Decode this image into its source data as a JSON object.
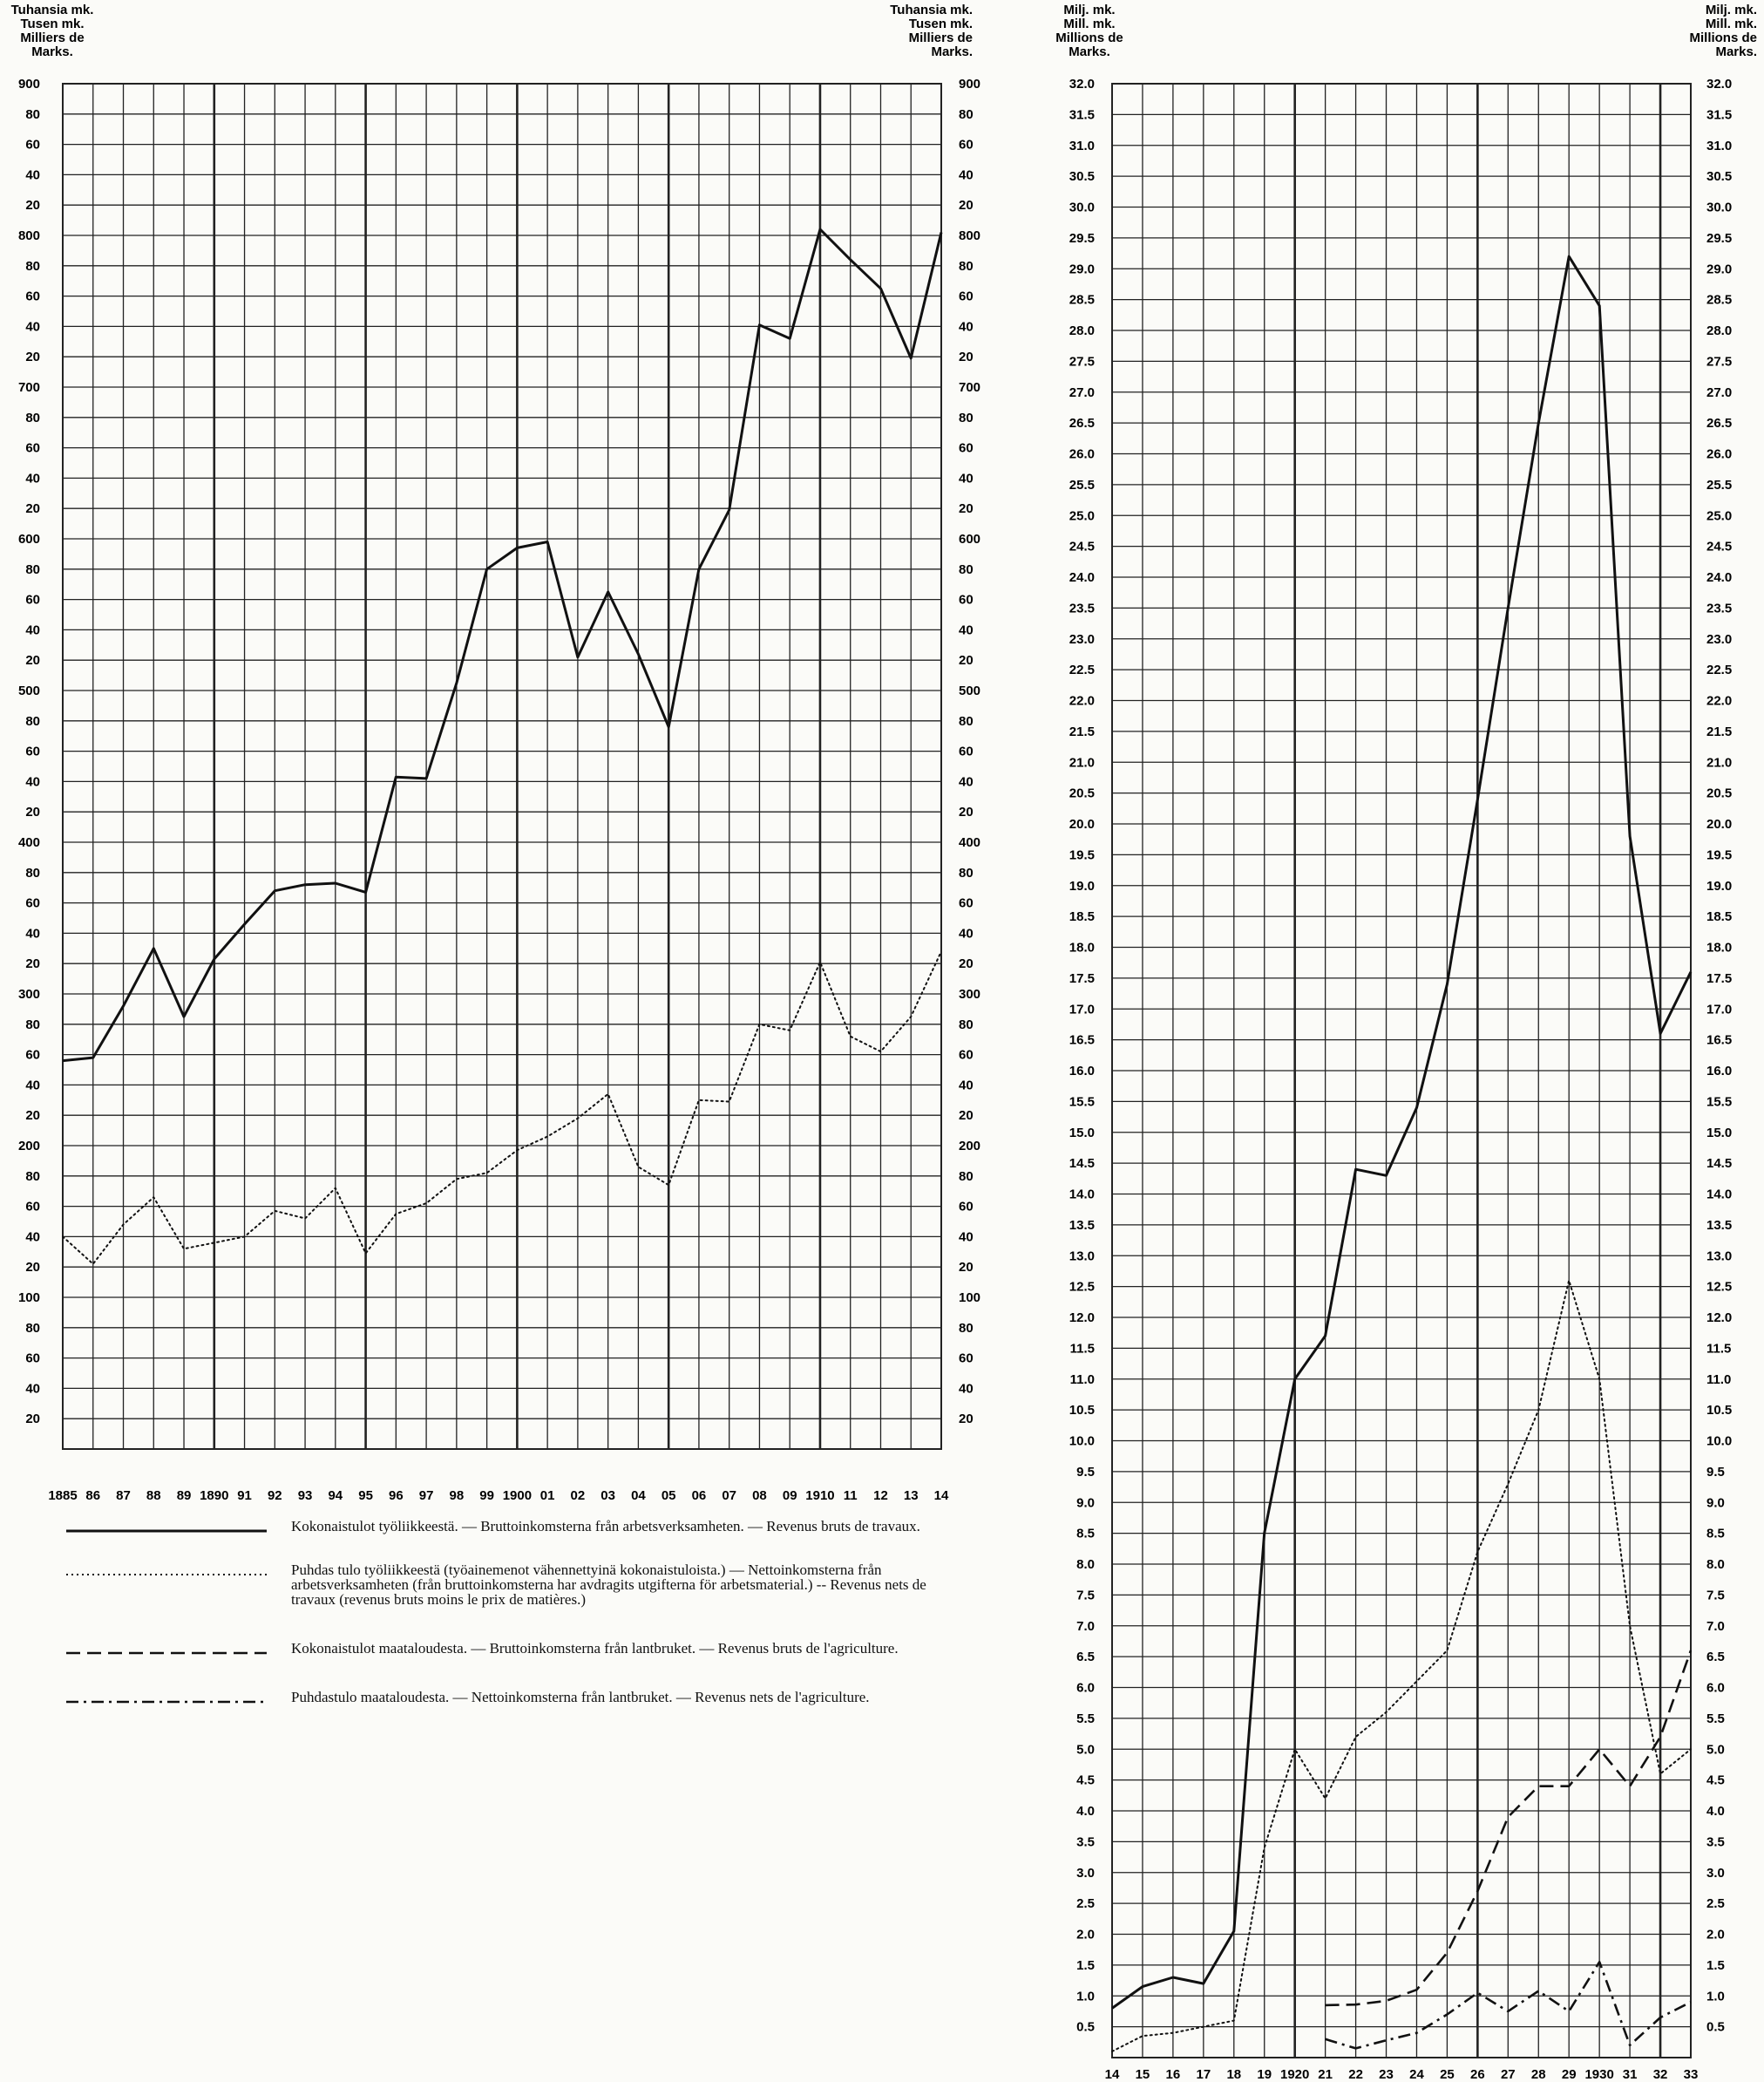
{
  "chart_data": [
    {
      "type": "line",
      "axis_labels": [
        "Tuhansia mk.",
        "Tusen mk.",
        "Milliers de",
        "Marks."
      ],
      "y_ticks": [
        {
          "v": 900,
          "t": "900"
        },
        {
          "v": 880,
          "t": "80"
        },
        {
          "v": 860,
          "t": "60"
        },
        {
          "v": 840,
          "t": "40"
        },
        {
          "v": 820,
          "t": "20"
        },
        {
          "v": 800,
          "t": "800"
        },
        {
          "v": 780,
          "t": "80"
        },
        {
          "v": 760,
          "t": "60"
        },
        {
          "v": 740,
          "t": "40"
        },
        {
          "v": 720,
          "t": "20"
        },
        {
          "v": 700,
          "t": "700"
        },
        {
          "v": 680,
          "t": "80"
        },
        {
          "v": 660,
          "t": "60"
        },
        {
          "v": 640,
          "t": "40"
        },
        {
          "v": 620,
          "t": "20"
        },
        {
          "v": 600,
          "t": "600"
        },
        {
          "v": 580,
          "t": "80"
        },
        {
          "v": 560,
          "t": "60"
        },
        {
          "v": 540,
          "t": "40"
        },
        {
          "v": 520,
          "t": "20"
        },
        {
          "v": 500,
          "t": "500"
        },
        {
          "v": 480,
          "t": "80"
        },
        {
          "v": 460,
          "t": "60"
        },
        {
          "v": 440,
          "t": "40"
        },
        {
          "v": 420,
          "t": "20"
        },
        {
          "v": 400,
          "t": "400"
        },
        {
          "v": 380,
          "t": "80"
        },
        {
          "v": 360,
          "t": "60"
        },
        {
          "v": 340,
          "t": "40"
        },
        {
          "v": 320,
          "t": "20"
        },
        {
          "v": 300,
          "t": "300"
        },
        {
          "v": 280,
          "t": "80"
        },
        {
          "v": 260,
          "t": "60"
        },
        {
          "v": 240,
          "t": "40"
        },
        {
          "v": 220,
          "t": "20"
        },
        {
          "v": 200,
          "t": "200"
        },
        {
          "v": 180,
          "t": "80"
        },
        {
          "v": 160,
          "t": "60"
        },
        {
          "v": 140,
          "t": "40"
        },
        {
          "v": 120,
          "t": "20"
        },
        {
          "v": 100,
          "t": "100"
        },
        {
          "v": 80,
          "t": "80"
        },
        {
          "v": 60,
          "t": "60"
        },
        {
          "v": 40,
          "t": "40"
        },
        {
          "v": 20,
          "t": "20"
        }
      ],
      "ylim": [
        0,
        900
      ],
      "x_tick_labels": [
        "1885",
        "86",
        "87",
        "88",
        "89",
        "1890",
        "91",
        "92",
        "93",
        "94",
        "95",
        "96",
        "97",
        "98",
        "99",
        "1900",
        "01",
        "02",
        "03",
        "04",
        "05",
        "06",
        "07",
        "08",
        "09",
        "1910",
        "11",
        "12",
        "13",
        "14"
      ],
      "x": [
        1885,
        1886,
        1887,
        1888,
        1889,
        1890,
        1891,
        1892,
        1893,
        1894,
        1895,
        1896,
        1897,
        1898,
        1899,
        1900,
        1901,
        1902,
        1903,
        1904,
        1905,
        1906,
        1907,
        1908,
        1909,
        1910,
        1911,
        1912,
        1913,
        1914
      ],
      "xlim": [
        1885,
        1914
      ],
      "series": [
        {
          "style": "solid",
          "values": [
            256,
            258,
            292,
            330,
            285,
            323,
            346,
            368,
            372,
            373,
            367,
            443,
            442,
            505,
            580,
            594,
            598,
            522,
            565,
            524,
            476,
            580,
            619,
            741,
            732,
            804,
            784,
            765,
            719,
            802
          ]
        },
        {
          "style": "dotted",
          "values": [
            140,
            122,
            148,
            166,
            132,
            136,
            140,
            157,
            152,
            172,
            129,
            155,
            162,
            178,
            182,
            197,
            206,
            218,
            234,
            186,
            174,
            230,
            229,
            280,
            276,
            321,
            272,
            262,
            285,
            328
          ]
        }
      ],
      "legend": [
        {
          "style": "solid",
          "text": "Kokonaistulot työliikkeestä. — Bruttoinkomsterna från arbetsverksamheten. — Revenus bruts de travaux."
        },
        {
          "style": "dotted",
          "text": "Puhdas tulo työliikkeestä (työainemenot vähennettyinä kokonaistuloista.) — Nettoinkomsterna från arbetsverksamheten (från bruttoinkomsterna har avdragits utgifterna för arbetsmaterial.) -- Revenus nets de travaux (revenus bruts moins le prix de matières.)"
        },
        {
          "style": "dashed",
          "text": "Kokonaistulot maataloudesta. — Bruttoinkomsterna från lantbruket. — Revenus bruts de l'agriculture."
        },
        {
          "style": "dashdot",
          "text": "Puhdastulo maataloudesta. — Nettoinkomsterna från lantbruket. — Revenus nets de l'agriculture."
        }
      ]
    },
    {
      "type": "line",
      "axis_labels": [
        "Milj. mk.",
        "Mill. mk.",
        "Millions de",
        "Marks."
      ],
      "y_ticks": [
        {
          "v": 32.0,
          "t": "32.0"
        },
        {
          "v": 31.5,
          "t": "31.5"
        },
        {
          "v": 31.0,
          "t": "31.0"
        },
        {
          "v": 30.5,
          "t": "30.5"
        },
        {
          "v": 30.0,
          "t": "30.0"
        },
        {
          "v": 29.5,
          "t": "29.5"
        },
        {
          "v": 29.0,
          "t": "29.0"
        },
        {
          "v": 28.5,
          "t": "28.5"
        },
        {
          "v": 28.0,
          "t": "28.0"
        },
        {
          "v": 27.5,
          "t": "27.5"
        },
        {
          "v": 27.0,
          "t": "27.0"
        },
        {
          "v": 26.5,
          "t": "26.5"
        },
        {
          "v": 26.0,
          "t": "26.0"
        },
        {
          "v": 25.5,
          "t": "25.5"
        },
        {
          "v": 25.0,
          "t": "25.0"
        },
        {
          "v": 24.5,
          "t": "24.5"
        },
        {
          "v": 24.0,
          "t": "24.0"
        },
        {
          "v": 23.5,
          "t": "23.5"
        },
        {
          "v": 23.0,
          "t": "23.0"
        },
        {
          "v": 22.5,
          "t": "22.5"
        },
        {
          "v": 22.0,
          "t": "22.0"
        },
        {
          "v": 21.5,
          "t": "21.5"
        },
        {
          "v": 21.0,
          "t": "21.0"
        },
        {
          "v": 20.5,
          "t": "20.5"
        },
        {
          "v": 20.0,
          "t": "20.0"
        },
        {
          "v": 19.5,
          "t": "19.5"
        },
        {
          "v": 19.0,
          "t": "19.0"
        },
        {
          "v": 18.5,
          "t": "18.5"
        },
        {
          "v": 18.0,
          "t": "18.0"
        },
        {
          "v": 17.5,
          "t": "17.5"
        },
        {
          "v": 17.0,
          "t": "17.0"
        },
        {
          "v": 16.5,
          "t": "16.5"
        },
        {
          "v": 16.0,
          "t": "16.0"
        },
        {
          "v": 15.5,
          "t": "15.5"
        },
        {
          "v": 15.0,
          "t": "15.0"
        },
        {
          "v": 14.5,
          "t": "14.5"
        },
        {
          "v": 14.0,
          "t": "14.0"
        },
        {
          "v": 13.5,
          "t": "13.5"
        },
        {
          "v": 13.0,
          "t": "13.0"
        },
        {
          "v": 12.5,
          "t": "12.5"
        },
        {
          "v": 12.0,
          "t": "12.0"
        },
        {
          "v": 11.5,
          "t": "11.5"
        },
        {
          "v": 11.0,
          "t": "11.0"
        },
        {
          "v": 10.5,
          "t": "10.5"
        },
        {
          "v": 10.0,
          "t": "10.0"
        },
        {
          "v": 9.5,
          "t": "9.5"
        },
        {
          "v": 9.0,
          "t": "9.0"
        },
        {
          "v": 8.5,
          "t": "8.5"
        },
        {
          "v": 8.0,
          "t": "8.0"
        },
        {
          "v": 7.5,
          "t": "7.5"
        },
        {
          "v": 7.0,
          "t": "7.0"
        },
        {
          "v": 6.5,
          "t": "6.5"
        },
        {
          "v": 6.0,
          "t": "6.0"
        },
        {
          "v": 5.5,
          "t": "5.5"
        },
        {
          "v": 5.0,
          "t": "5.0"
        },
        {
          "v": 4.5,
          "t": "4.5"
        },
        {
          "v": 4.0,
          "t": "4.0"
        },
        {
          "v": 3.5,
          "t": "3.5"
        },
        {
          "v": 3.0,
          "t": "3.0"
        },
        {
          "v": 2.5,
          "t": "2.5"
        },
        {
          "v": 2.0,
          "t": "2.0"
        },
        {
          "v": 1.5,
          "t": "1.5"
        },
        {
          "v": 1.0,
          "t": "1.0"
        },
        {
          "v": 0.5,
          "t": "0.5"
        }
      ],
      "ylim": [
        0,
        32
      ],
      "x_tick_labels": [
        "14",
        "15",
        "16",
        "17",
        "18",
        "19",
        "1920",
        "21",
        "22",
        "23",
        "24",
        "25",
        "26",
        "27",
        "28",
        "29",
        "1930",
        "31",
        "32",
        "33"
      ],
      "x": [
        1914,
        1915,
        1916,
        1917,
        1918,
        1919,
        1920,
        1921,
        1922,
        1923,
        1924,
        1925,
        1926,
        1927,
        1928,
        1929,
        1930,
        1931,
        1932,
        1933
      ],
      "xlim": [
        1914,
        1933
      ],
      "series": [
        {
          "style": "solid",
          "values": [
            0.8,
            1.15,
            1.3,
            1.2,
            2.05,
            8.5,
            11.0,
            11.7,
            14.4,
            14.3,
            15.4,
            17.4,
            20.4,
            23.5,
            26.5,
            29.2,
            28.4,
            19.8,
            16.6,
            17.6
          ]
        },
        {
          "style": "dotted",
          "values": [
            0.1,
            0.35,
            0.4,
            0.5,
            0.6,
            3.4,
            5.0,
            4.2,
            5.2,
            5.6,
            6.1,
            6.6,
            8.2,
            9.3,
            10.5,
            12.6,
            11.0,
            7.0,
            4.6,
            5.0
          ]
        },
        {
          "style": "dashed",
          "values": [
            null,
            null,
            null,
            null,
            null,
            null,
            null,
            0.85,
            0.86,
            0.92,
            1.1,
            1.7,
            2.7,
            3.9,
            4.4,
            4.4,
            5.0,
            4.4,
            5.2,
            6.6
          ]
        },
        {
          "style": "dashdot",
          "values": [
            null,
            null,
            null,
            null,
            null,
            null,
            null,
            0.3,
            0.15,
            0.28,
            0.4,
            0.7,
            1.05,
            0.75,
            1.08,
            0.75,
            1.55,
            0.2,
            0.65,
            0.9
          ]
        }
      ]
    }
  ]
}
